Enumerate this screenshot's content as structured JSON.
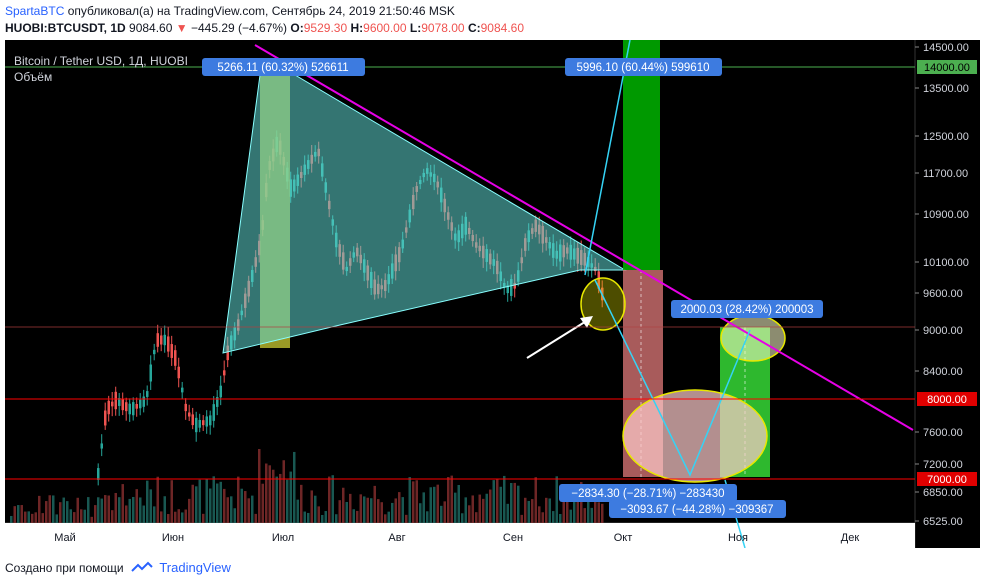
{
  "header": {
    "author": "SpartaBTC",
    "published_text": "опубликовал(а) на TradingView.com, Сентябрь 24, 2019 21:50:46 MSK",
    "symbol": "HUOBI:BTCUSDT, 1D",
    "last": "9084.60",
    "change": "−445.29 (−4.67%)",
    "o_label": "O:",
    "o": "9529.30",
    "h_label": "H:",
    "h": "9600.00",
    "l_label": "L:",
    "l": "9078.00",
    "c_label": "C:",
    "c": "9084.60"
  },
  "chart_data": {
    "type": "line",
    "title": "Bitcoin / Tether USD, 1Д, HUOBI",
    "subtitle": "Объём",
    "price_ticks": [
      "14500.00",
      "13500.00",
      "12500.00",
      "11700.00",
      "10900.00",
      "10100.00",
      "9600.00",
      "9000.00",
      "8400.00",
      "7600.00",
      "7200.00",
      "6850.00",
      "6525.00"
    ],
    "time_ticks": [
      "Май",
      "Июн",
      "Июл",
      "Авг",
      "Сен",
      "Окт",
      "Ноя",
      "Дек"
    ],
    "horizontal_levels": [
      {
        "label": "14000.00",
        "value": 14000,
        "color": "#4caf50"
      },
      {
        "label": "8000.00",
        "value": 8000,
        "color": "#e00000"
      },
      {
        "label": "7000.00",
        "value": 7000,
        "color": "#e00000"
      }
    ],
    "annotations": [
      {
        "text": "5266.11 (60.32%) 526611",
        "kind": "range-up"
      },
      {
        "text": "5996.10 (60.44%) 599610",
        "kind": "range-up"
      },
      {
        "text": "2000.03 (28.42%) 200003",
        "kind": "range-up"
      },
      {
        "text": "−2834.30 (−28.71%) −283430",
        "kind": "range-down"
      },
      {
        "text": "−3093.67 (−44.28%) −309367",
        "kind": "range-down"
      }
    ],
    "colors": {
      "up": "#26a69a",
      "down": "#ef5350",
      "trendline": "#e600e6",
      "triangle": "#6fe3d8",
      "projection": "#2ec4f2"
    }
  },
  "footer": {
    "created_with": "Создано при помощи",
    "brand": "TradingView"
  }
}
